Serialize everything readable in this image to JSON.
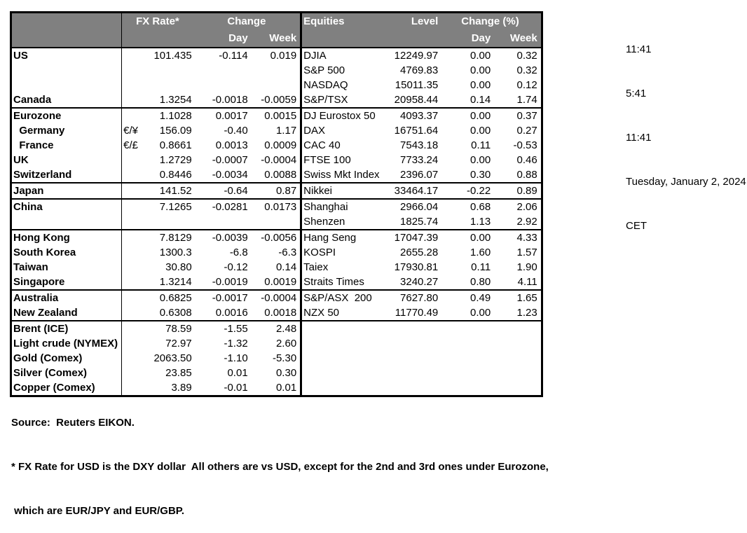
{
  "colors": {
    "header_bg": "#808080",
    "header_text": "#ffffff",
    "border": "#000000"
  },
  "clock": {
    "lines": [
      "11:41",
      "5:41",
      "11:41",
      "Tuesday, January 2, 2024",
      "CET"
    ]
  },
  "table": {
    "fx_header": {
      "rate": "FX Rate*",
      "change": "Change",
      "day": "Day",
      "week": "Week"
    },
    "eq_header": {
      "equities": "Equities",
      "level": "Level",
      "change": "Change (%)",
      "day": "Day",
      "week": "Week"
    },
    "sections": [
      {
        "rows": [
          {
            "name": "US",
            "sym": "",
            "rate": "101.435",
            "day": "-0.114",
            "week": "0.019",
            "eq": "DJIA",
            "level": "12249.97",
            "eday": "0.00",
            "eweek": "0.32"
          },
          {
            "name": "",
            "sym": "",
            "rate": "",
            "day": "",
            "week": "",
            "eq": "S&P 500",
            "level": "4769.83",
            "eday": "0.00",
            "eweek": "0.32"
          },
          {
            "name": "",
            "sym": "",
            "rate": "",
            "day": "",
            "week": "",
            "eq": "NASDAQ",
            "level": "15011.35",
            "eday": "0.00",
            "eweek": "0.12"
          },
          {
            "name": "Canada",
            "sym": "",
            "rate": "1.3254",
            "day": "-0.0018",
            "week": "-0.0059",
            "eq": "S&P/TSX",
            "level": "20958.44",
            "eday": "0.14",
            "eweek": "1.74"
          }
        ]
      },
      {
        "rows": [
          {
            "name": "Eurozone",
            "sym": "",
            "rate": "1.1028",
            "day": "0.0017",
            "week": "0.0015",
            "eq": "DJ Eurostox 50",
            "level": "4093.37",
            "eday": "0.00",
            "eweek": "0.37"
          },
          {
            "name": "  Germany",
            "sym": "€/¥",
            "rate": "156.09",
            "day": "-0.40",
            "week": "1.17",
            "eq": "DAX",
            "level": "16751.64",
            "eday": "0.00",
            "eweek": "0.27"
          },
          {
            "name": "  France",
            "sym": "€/£",
            "rate": "0.8661",
            "day": "0.0013",
            "week": "0.0009",
            "eq": "CAC 40",
            "level": "7543.18",
            "eday": "0.11",
            "eweek": "-0.53"
          },
          {
            "name": "UK",
            "sym": "",
            "rate": "1.2729",
            "day": "-0.0007",
            "week": "-0.0004",
            "eq": "FTSE 100",
            "level": "7733.24",
            "eday": "0.00",
            "eweek": "0.46"
          },
          {
            "name": "Switzerland",
            "sym": "",
            "rate": "0.8446",
            "day": "-0.0034",
            "week": "0.0088",
            "eq": "Swiss Mkt Index",
            "level": "2396.07",
            "eday": "0.30",
            "eweek": "0.88"
          }
        ]
      },
      {
        "rows": [
          {
            "name": "Japan",
            "sym": "",
            "rate": "141.52",
            "day": "-0.64",
            "week": "0.87",
            "eq": "Nikkei",
            "level": "33464.17",
            "eday": "-0.22",
            "eweek": "0.89"
          }
        ]
      },
      {
        "rows": [
          {
            "name": "China",
            "sym": "",
            "rate": "7.1265",
            "day": "-0.0281",
            "week": "0.0173",
            "eq": "Shanghai",
            "level": "2966.04",
            "eday": "0.68",
            "eweek": "2.06"
          },
          {
            "name": "",
            "sym": "",
            "rate": "",
            "day": "",
            "week": "",
            "eq": "Shenzen",
            "level": "1825.74",
            "eday": "1.13",
            "eweek": "2.92"
          }
        ]
      },
      {
        "rows": [
          {
            "name": "Hong Kong",
            "sym": "",
            "rate": "7.8129",
            "day": "-0.0039",
            "week": "-0.0056",
            "eq": "Hang Seng",
            "level": "17047.39",
            "eday": "0.00",
            "eweek": "4.33"
          },
          {
            "name": "South Korea",
            "sym": "",
            "rate": "1300.3",
            "day": "-6.8",
            "week": "-6.3",
            "eq": "KOSPI",
            "level": "2655.28",
            "eday": "1.60",
            "eweek": "1.57"
          },
          {
            "name": "Taiwan",
            "sym": "",
            "rate": "30.80",
            "day": "-0.12",
            "week": "0.14",
            "eq": "Taiex",
            "level": "17930.81",
            "eday": "0.11",
            "eweek": "1.90"
          },
          {
            "name": "Singapore",
            "sym": "",
            "rate": "1.3214",
            "day": "-0.0019",
            "week": "0.0019",
            "eq": "Straits Times",
            "level": "3240.27",
            "eday": "0.80",
            "eweek": "4.11"
          }
        ]
      },
      {
        "rows": [
          {
            "name": "Australia",
            "sym": "",
            "rate": "0.6825",
            "day": "-0.0017",
            "week": "-0.0004",
            "eq": "S&P/ASX  200",
            "level": "7627.80",
            "eday": "0.49",
            "eweek": "1.65"
          },
          {
            "name": "New Zealand",
            "sym": "",
            "rate": "0.6308",
            "day": "0.0016",
            "week": "0.0018",
            "eq": "NZX 50",
            "level": "11770.49",
            "eday": "0.00",
            "eweek": "1.23"
          }
        ]
      },
      {
        "rows": [
          {
            "name": "Brent (ICE)",
            "sym": "",
            "rate": "78.59",
            "day": "-1.55",
            "week": "2.48",
            "eq": "",
            "level": "",
            "eday": "",
            "eweek": ""
          },
          {
            "name": "Light crude (NYMEX)",
            "sym": "",
            "rate": "72.97",
            "day": "-1.32",
            "week": "2.60",
            "eq": "",
            "level": "",
            "eday": "",
            "eweek": ""
          },
          {
            "name": "Gold (Comex)",
            "sym": "",
            "rate": "2063.50",
            "day": "-1.10",
            "week": "-5.30",
            "eq": "",
            "level": "",
            "eday": "",
            "eweek": ""
          },
          {
            "name": "Silver (Comex)",
            "sym": "",
            "rate": "23.85",
            "day": "0.01",
            "week": "0.30",
            "eq": "",
            "level": "",
            "eday": "",
            "eweek": ""
          },
          {
            "name": "Copper (Comex)",
            "sym": "",
            "rate": "3.89",
            "day": "-0.01",
            "week": "0.01",
            "eq": "",
            "level": "",
            "eday": "",
            "eweek": ""
          }
        ]
      }
    ]
  },
  "footer": {
    "source": "Source:  Reuters EIKON.",
    "note1": "* FX Rate for USD is the DXY dollar  All others are vs USD, except for the 2nd and 3rd ones under Eurozone,",
    "note2": " which are EUR/JPY and EUR/GBP."
  }
}
